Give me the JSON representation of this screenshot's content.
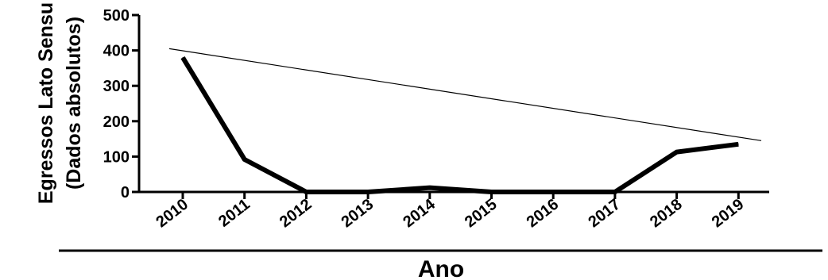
{
  "chart_data": {
    "type": "line",
    "categories": [
      "2010",
      "2011",
      "2012",
      "2013",
      "2014",
      "2015",
      "2016",
      "2017",
      "2018",
      "2019"
    ],
    "series": [
      {
        "values": [
          380,
          92,
          0,
          0,
          12,
          0,
          0,
          0,
          113,
          135
        ]
      }
    ],
    "trendline": {
      "start_value": 405,
      "end_value": 145
    },
    "xlabel": "Ano",
    "ylabel_line1": "Egressos Lato Sensu",
    "ylabel_line2": "(Dados absolutos)",
    "ylim": [
      0,
      500
    ],
    "yticks": [
      0,
      100,
      200,
      300,
      400,
      500
    ],
    "grid": false,
    "legend": "none",
    "colors": {
      "line": "#000000",
      "axis": "#000000"
    }
  }
}
